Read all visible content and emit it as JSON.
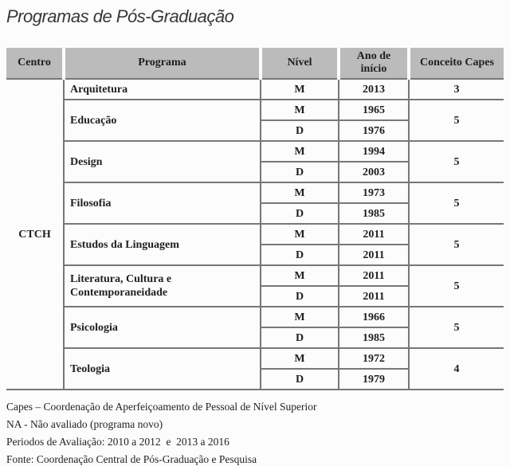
{
  "title": "Programas de Pós-Graduação",
  "table": {
    "headers": [
      "Centro",
      "Programa",
      "Nível",
      "Ano de início",
      "Conceito Capes"
    ],
    "centro": "CTCH",
    "groups": [
      {
        "programa": "Arquitetura",
        "conceito": "3",
        "rows": [
          {
            "nivel": "M",
            "ano": "2013"
          }
        ]
      },
      {
        "programa": "Educação",
        "conceito": "5",
        "rows": [
          {
            "nivel": "M",
            "ano": "1965"
          },
          {
            "nivel": "D",
            "ano": "1976"
          }
        ]
      },
      {
        "programa": "Design",
        "conceito": "5",
        "rows": [
          {
            "nivel": "M",
            "ano": "1994"
          },
          {
            "nivel": "D",
            "ano": "2003"
          }
        ]
      },
      {
        "programa": "Filosofia",
        "conceito": "5",
        "rows": [
          {
            "nivel": "M",
            "ano": "1973"
          },
          {
            "nivel": "D",
            "ano": "1985"
          }
        ]
      },
      {
        "programa": "Estudos da Linguagem",
        "conceito": "5",
        "rows": [
          {
            "nivel": "M",
            "ano": "2011"
          },
          {
            "nivel": "D",
            "ano": "2011"
          }
        ]
      },
      {
        "programa": "Literatura, Cultura e Contemporaneidade",
        "conceito": "5",
        "rows": [
          {
            "nivel": "M",
            "ano": "2011"
          },
          {
            "nivel": "D",
            "ano": "2011"
          }
        ]
      },
      {
        "programa": "Psicologia",
        "conceito": "5",
        "rows": [
          {
            "nivel": "M",
            "ano": "1966"
          },
          {
            "nivel": "D",
            "ano": "1985"
          }
        ]
      },
      {
        "programa": "Teologia",
        "conceito": "4",
        "rows": [
          {
            "nivel": "M",
            "ano": "1972"
          },
          {
            "nivel": "D",
            "ano": "1979"
          }
        ]
      }
    ]
  },
  "footnotes": [
    "Capes – Coordenação de Aperfeiçoamento de Pessoal de Nível Superior",
    "NA - Não avaliado (programa novo)",
    "Periodos de Avaliação: 2010 a 2012  e  2013 a 2016",
    "Fonte: Coordenação Central de Pós-Graduação e Pesquisa"
  ],
  "colors": {
    "page_background": "#fcfcfc",
    "header_background": "#bbbbbb",
    "table_border": "#777777",
    "text": "#1f1f1f"
  }
}
